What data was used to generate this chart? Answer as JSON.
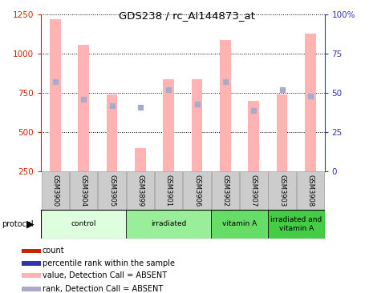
{
  "title": "GDS238 / rc_AI144873_at",
  "samples": [
    "GSM3900",
    "GSM3904",
    "GSM3905",
    "GSM3899",
    "GSM3901",
    "GSM3906",
    "GSM3902",
    "GSM3907",
    "GSM3903",
    "GSM3908"
  ],
  "bar_values": [
    1220,
    1060,
    740,
    400,
    840,
    840,
    1090,
    700,
    740,
    1130
  ],
  "rank_values_pct": [
    57,
    46,
    42,
    41,
    52,
    43,
    57,
    39,
    52,
    48
  ],
  "bar_color": "#FFB3B3",
  "rank_color": "#AAAACC",
  "left_ylim": [
    250,
    1250
  ],
  "left_yticks": [
    250,
    500,
    750,
    1000,
    1250
  ],
  "right_ylim": [
    0,
    100
  ],
  "right_yticks": [
    0,
    25,
    50,
    75,
    100
  ],
  "right_yticklabels": [
    "0",
    "25",
    "50",
    "75",
    "100%"
  ],
  "left_tick_color": "#CC2200",
  "right_tick_color": "#3333AA",
  "protocol_groups": [
    {
      "label": "control",
      "start": 0,
      "end": 3,
      "color": "#DDFFDD"
    },
    {
      "label": "irradiated",
      "start": 3,
      "end": 6,
      "color": "#99EE99"
    },
    {
      "label": "vitamin A",
      "start": 6,
      "end": 8,
      "color": "#66DD66"
    },
    {
      "label": "irradiated and\nvitamin A",
      "start": 8,
      "end": 10,
      "color": "#44CC44"
    }
  ],
  "legend_items": [
    {
      "label": "count",
      "color": "#CC2200"
    },
    {
      "label": "percentile rank within the sample",
      "color": "#3333AA"
    },
    {
      "label": "value, Detection Call = ABSENT",
      "color": "#FFB3B3"
    },
    {
      "label": "rank, Detection Call = ABSENT",
      "color": "#AAAACC"
    }
  ],
  "bg_color": "#FFFFFF"
}
